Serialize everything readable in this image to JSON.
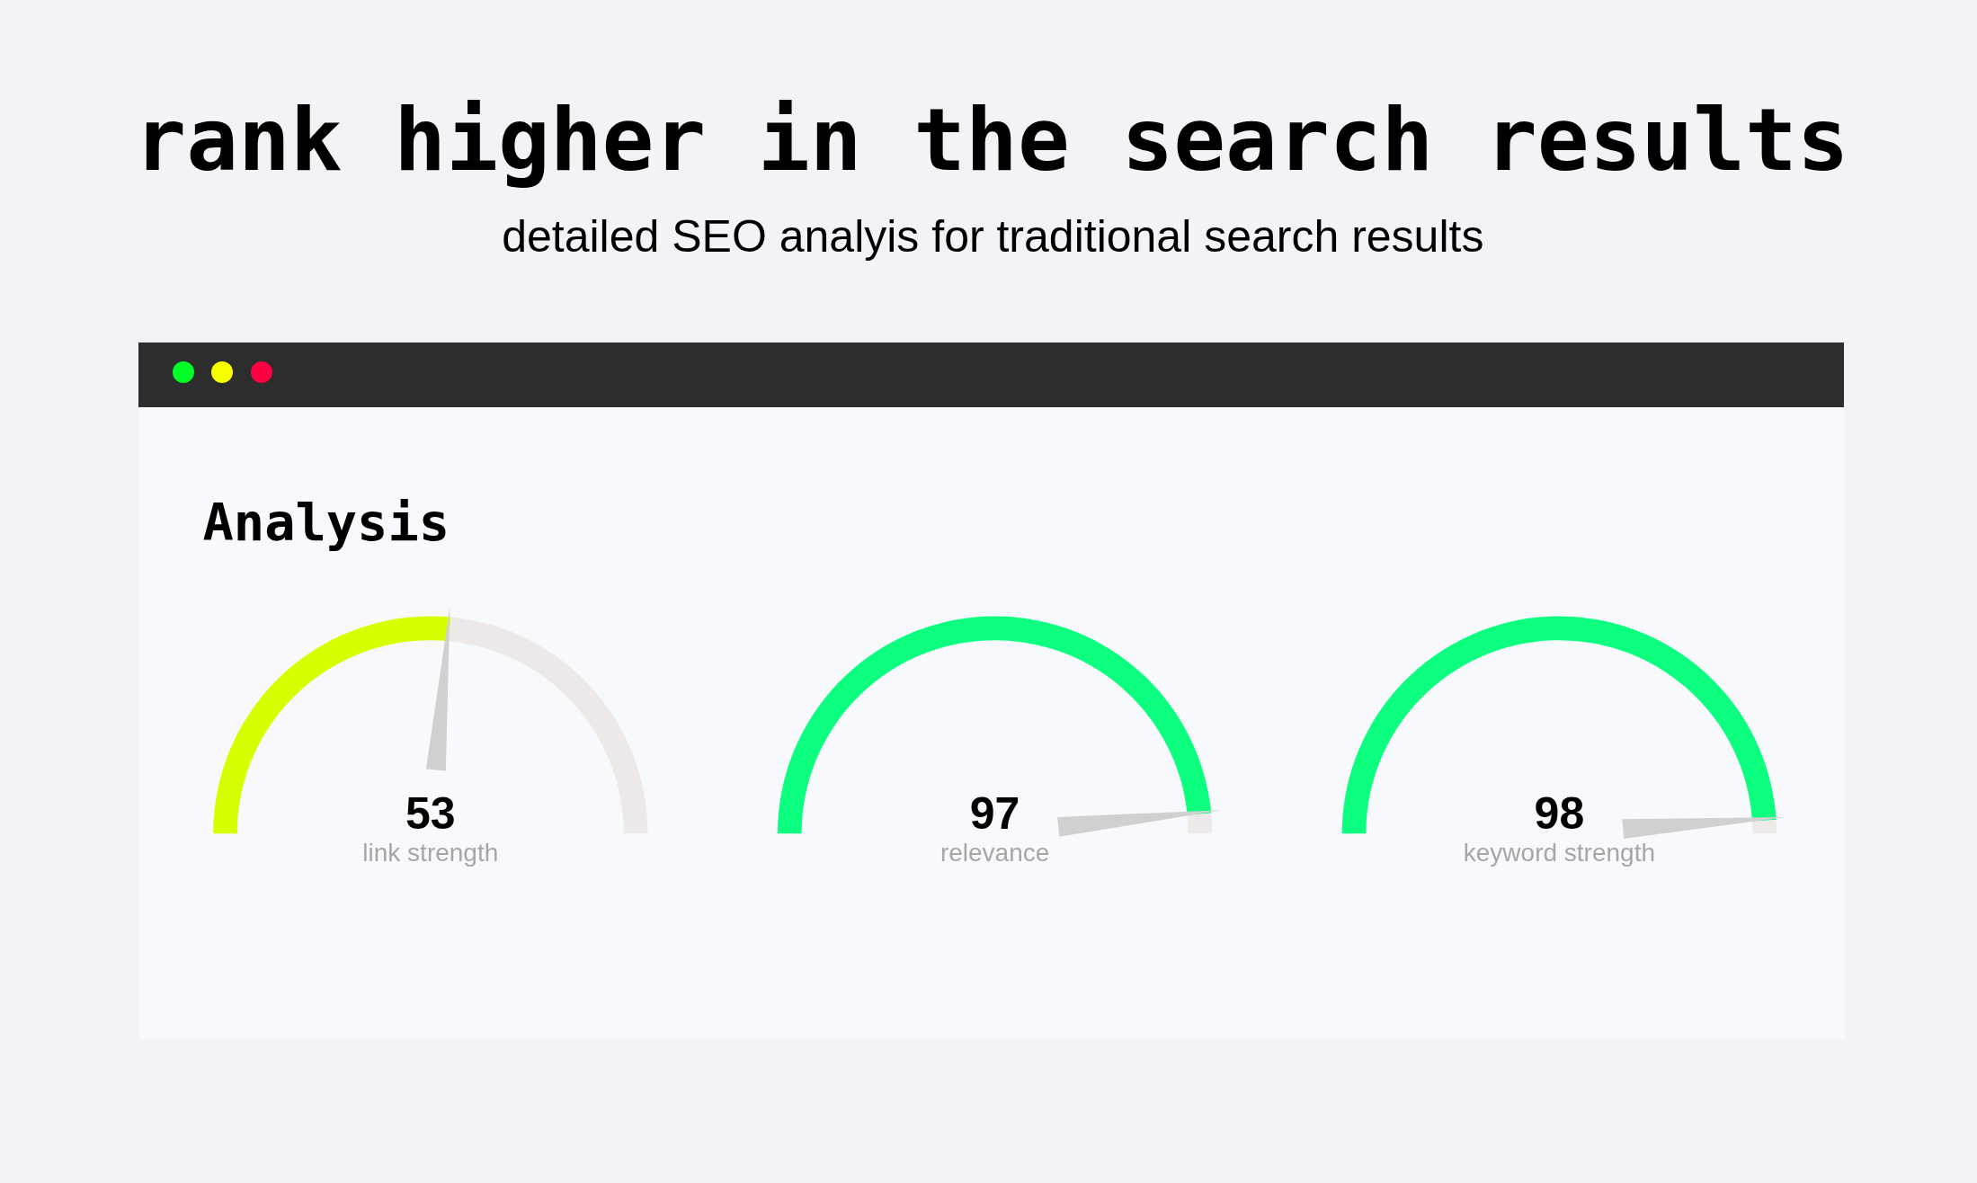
{
  "chart_data": [
    {
      "type": "other",
      "title": "rank higher in the search results",
      "subtitle": "detailed SEO analyis for traditional search results",
      "annotations": [
        "Analysis"
      ]
    },
    {
      "type": "donut",
      "categories": [
        "link strength",
        null
      ],
      "values": [
        53,
        47
      ],
      "colors": [
        "#d8ff00",
        "#ece9e8"
      ],
      "value_labels": [
        "53",
        null
      ],
      "needle": "link strength"
    },
    {
      "type": "donut",
      "categories": [
        "relevance",
        null
      ],
      "values": [
        97,
        3
      ],
      "colors": [
        "#0dff7f",
        "#ece9e8"
      ],
      "value_labels": [
        "97",
        null
      ],
      "needle": "relevance"
    },
    {
      "type": "donut",
      "categories": [
        "keyword strength",
        null
      ],
      "values": [
        98,
        2
      ],
      "colors": [
        "#0dff7f",
        "#ece9e8"
      ],
      "value_labels": [
        "98",
        null
      ],
      "needle": "keyword strength"
    }
  ]
}
